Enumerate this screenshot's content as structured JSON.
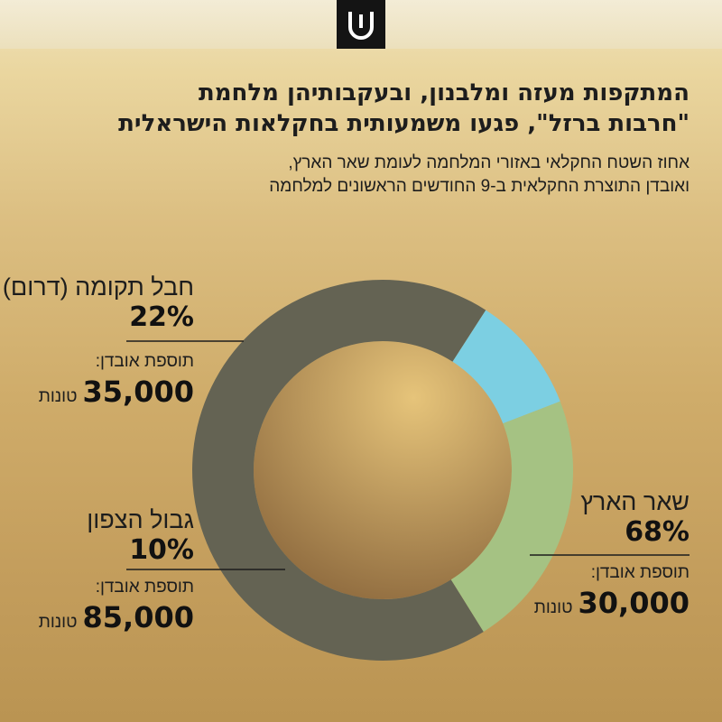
{
  "header": {
    "title_line1": "המתקפות מעזה ומלבנון, ובעקבותיהן מלחמת",
    "title_line2": "\"חרבות ברזל\", פגעו משמעותית בחקלאות הישראלית",
    "subtitle_line1": "אחוז השטח החקלאי באזורי המלחמה לעומת שאר הארץ,",
    "subtitle_line2": "ואובדן התוצרת החקלאית ב-9 החודשים הראשונים למלחמה"
  },
  "chart_data": {
    "type": "pie",
    "title": "המתקפות מעזה ומלבנון, ובעקבותיהן מלחמת \"חרבות ברזל\", פגעו משמעותית בחקלאות הישראלית",
    "subtitle": "אחוז השטח החקלאי באזורי המלחמה לעומת שאר הארץ, ואובדן התוצרת החקלאית ב-9 החודשים הראשונים למלחמה",
    "slices": [
      {
        "label": "שאר הארץ",
        "value": 68,
        "value_label": "68%",
        "loss_label": "תוספת אובדן:",
        "loss_value": "30,000",
        "loss_unit": "טונות",
        "color": "#646353"
      },
      {
        "label": "גבול הצפון",
        "value": 10,
        "value_label": "10%",
        "loss_label": "תוספת אובדן:",
        "loss_value": "85,000",
        "loss_unit": "טונות",
        "color": "#7ccfe2"
      },
      {
        "label": "חבל תקומה (דרום)",
        "value": 22,
        "value_label": "22%",
        "loss_label": "תוספת אובדן:",
        "loss_value": "35,000",
        "loss_unit": "טונות",
        "color": "#a5c283"
      }
    ],
    "donut": true
  },
  "colors": {
    "center_light": "#e6c47a",
    "center_dark": "#8e6a3e",
    "logo_bg": "#141414",
    "logo_fg": "#ffffff"
  }
}
